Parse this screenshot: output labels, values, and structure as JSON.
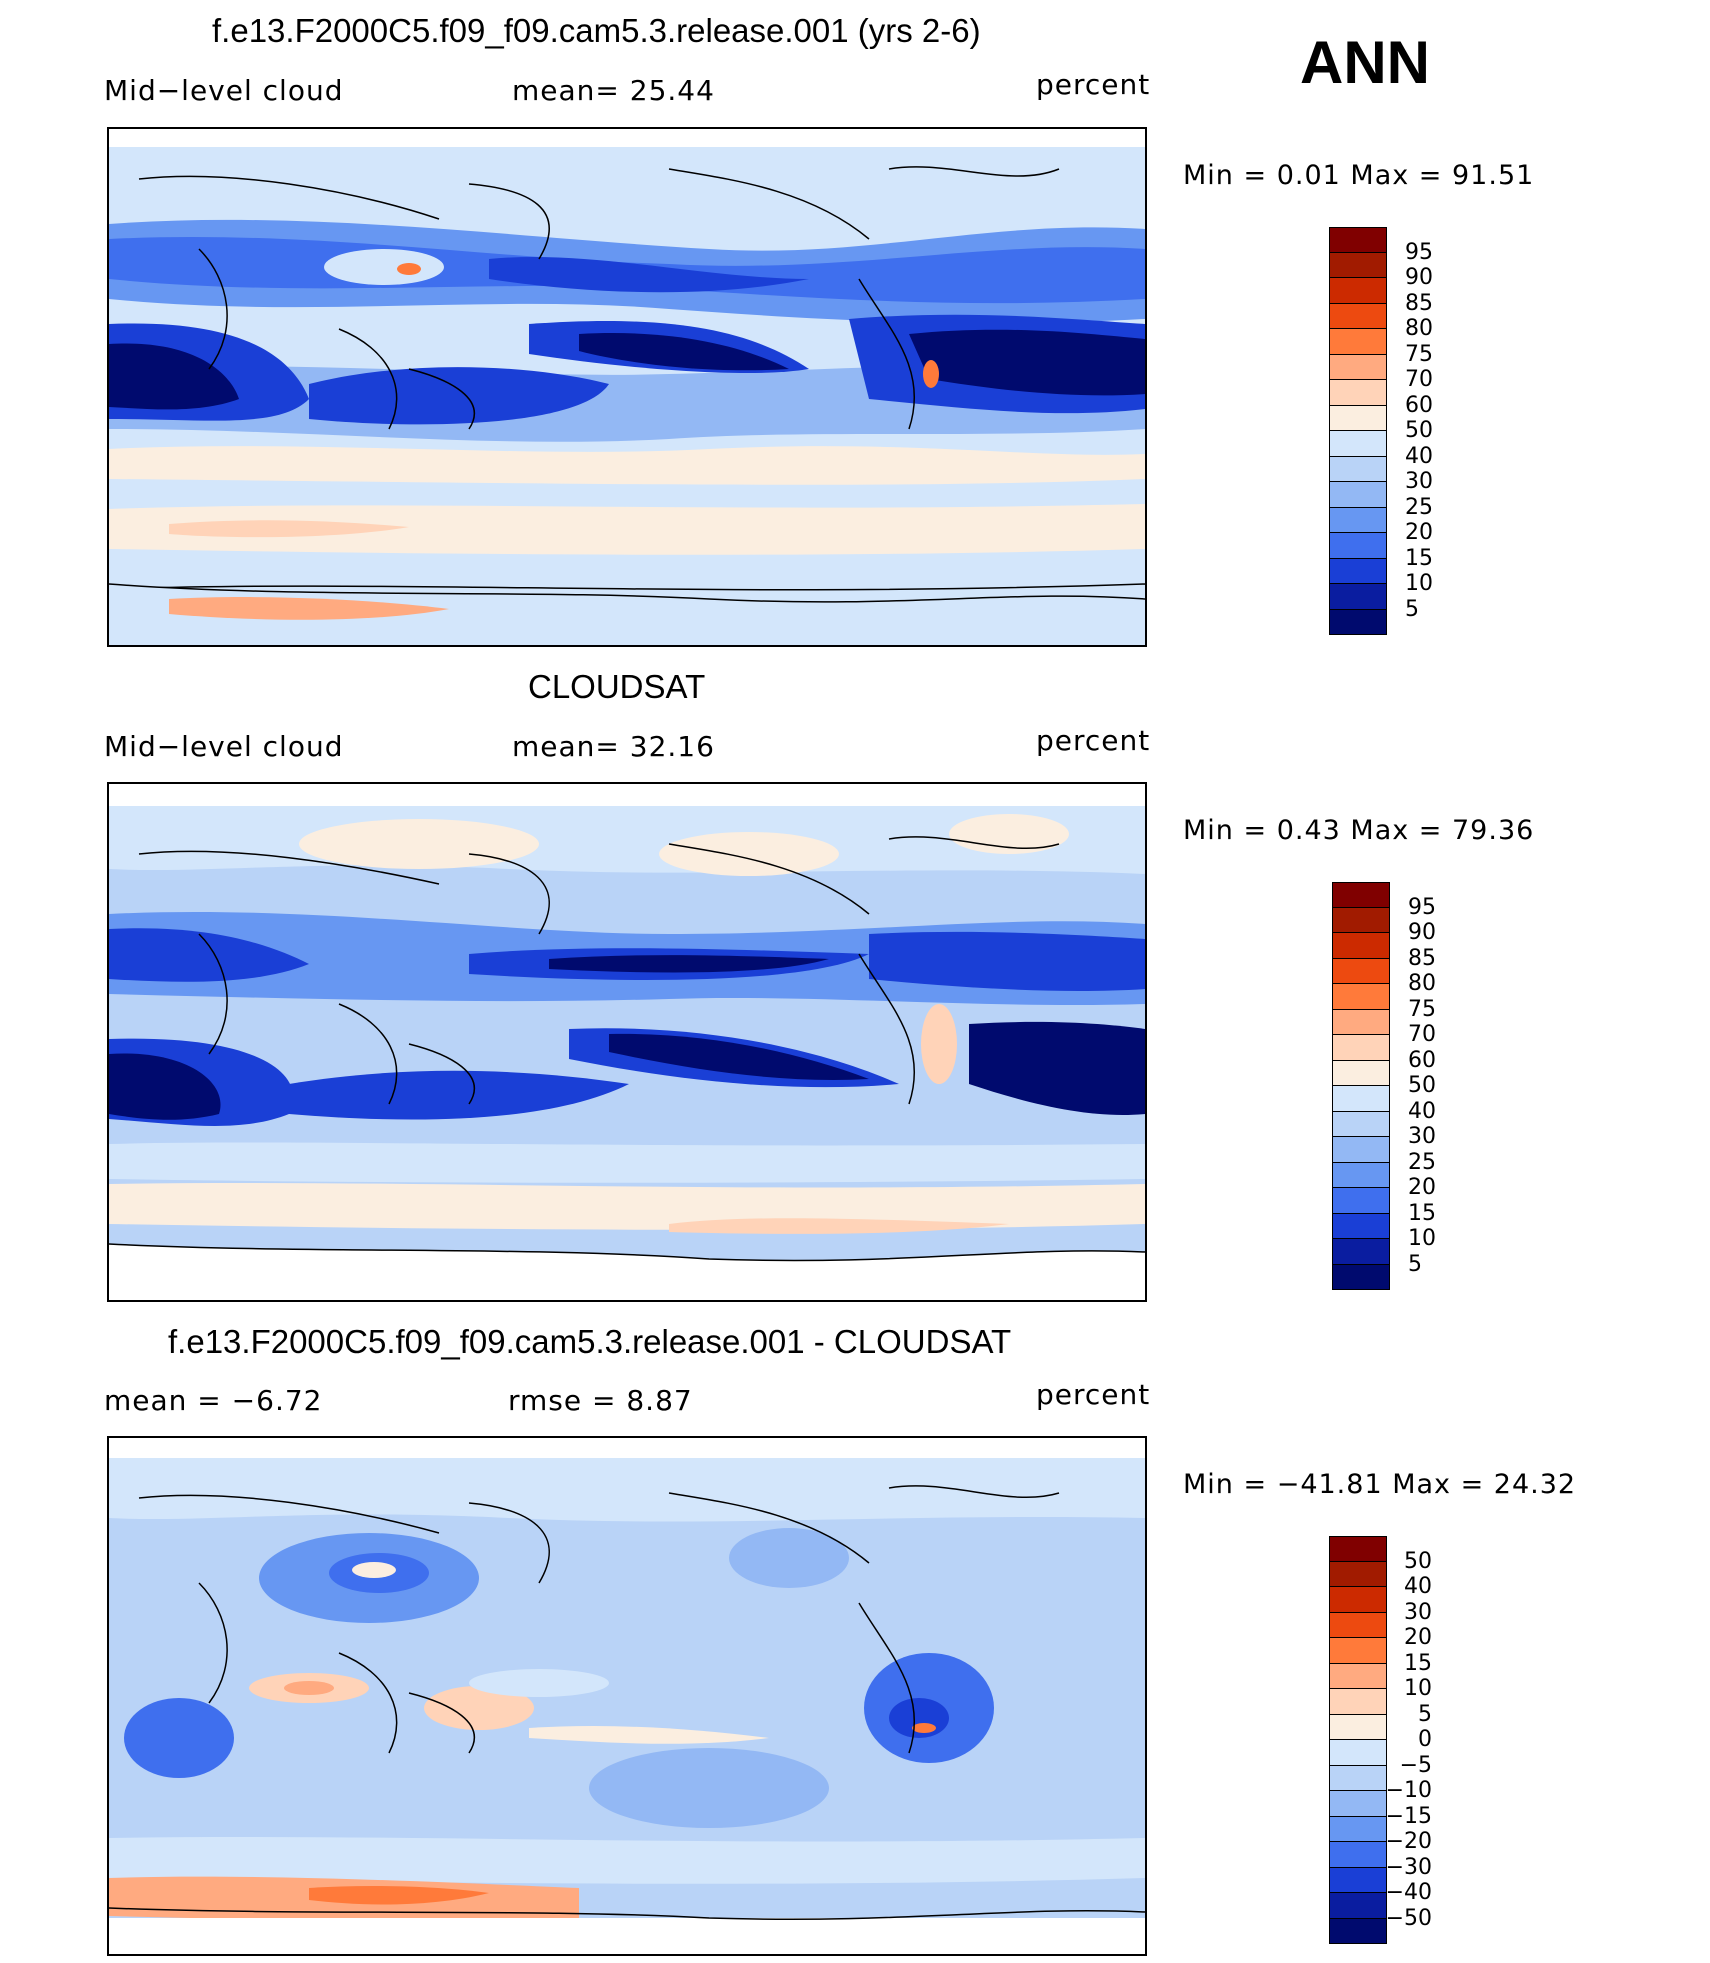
{
  "season": "ANN",
  "land_icon": "continent-outline-icon",
  "panels": [
    {
      "title": "f.e13.F2000C5.f09_f09.cam5.3.release.001 (yrs 2-6)",
      "left_label": "Mid−level cloud",
      "mid_label": "mean=   25.44",
      "units": "percent",
      "minmax": "Min  =     0.01  Max  =    91.51",
      "legend": {
        "levels": [
          "95",
          "90",
          "85",
          "80",
          "75",
          "70",
          "60",
          "50",
          "40",
          "30",
          "25",
          "20",
          "15",
          "10",
          "5"
        ],
        "colors": [
          "#800000",
          "#a11b00",
          "#cc2a00",
          "#ed4a10",
          "#ff7a3a",
          "#ffaa80",
          "#ffd3b8",
          "#fbeee0",
          "#d3e6fb",
          "#b9d3f7",
          "#93b8f4",
          "#6797f2",
          "#3f6fee",
          "#1a3fd6",
          "#0a1da0",
          "#000a6e"
        ]
      }
    },
    {
      "title": "CLOUDSAT",
      "left_label": "Mid−level cloud",
      "mid_label": "mean=   32.16",
      "units": "percent",
      "minmax": "Min  =     0.43  Max  =    79.36",
      "legend": {
        "levels": [
          "95",
          "90",
          "85",
          "80",
          "75",
          "70",
          "60",
          "50",
          "40",
          "30",
          "25",
          "20",
          "15",
          "10",
          "5"
        ],
        "colors": [
          "#800000",
          "#a11b00",
          "#cc2a00",
          "#ed4a10",
          "#ff7a3a",
          "#ffaa80",
          "#ffd3b8",
          "#fbeee0",
          "#d3e6fb",
          "#b9d3f7",
          "#93b8f4",
          "#6797f2",
          "#3f6fee",
          "#1a3fd6",
          "#0a1da0",
          "#000a6e"
        ]
      }
    },
    {
      "title": "f.e13.F2000C5.f09_f09.cam5.3.release.001 - CLOUDSAT",
      "left_label": "mean  =    −6.72",
      "mid_label": "rmse  =     8.87",
      "units": "percent",
      "minmax": "Min  = −41.81  Max  =    24.32",
      "legend": {
        "levels": [
          "50",
          "40",
          "30",
          "20",
          "15",
          "10",
          "5",
          "0",
          "−5",
          "−10",
          "−15",
          "−20",
          "−30",
          "−40",
          "−50"
        ],
        "colors": [
          "#800000",
          "#a11b00",
          "#cc2a00",
          "#ed4a10",
          "#ff7a3a",
          "#ffaa80",
          "#ffd3b8",
          "#fbeee0",
          "#d3e6fb",
          "#b9d3f7",
          "#93b8f4",
          "#6797f2",
          "#3f6fee",
          "#1a3fd6",
          "#0a1da0",
          "#000a6e"
        ]
      }
    }
  ]
}
